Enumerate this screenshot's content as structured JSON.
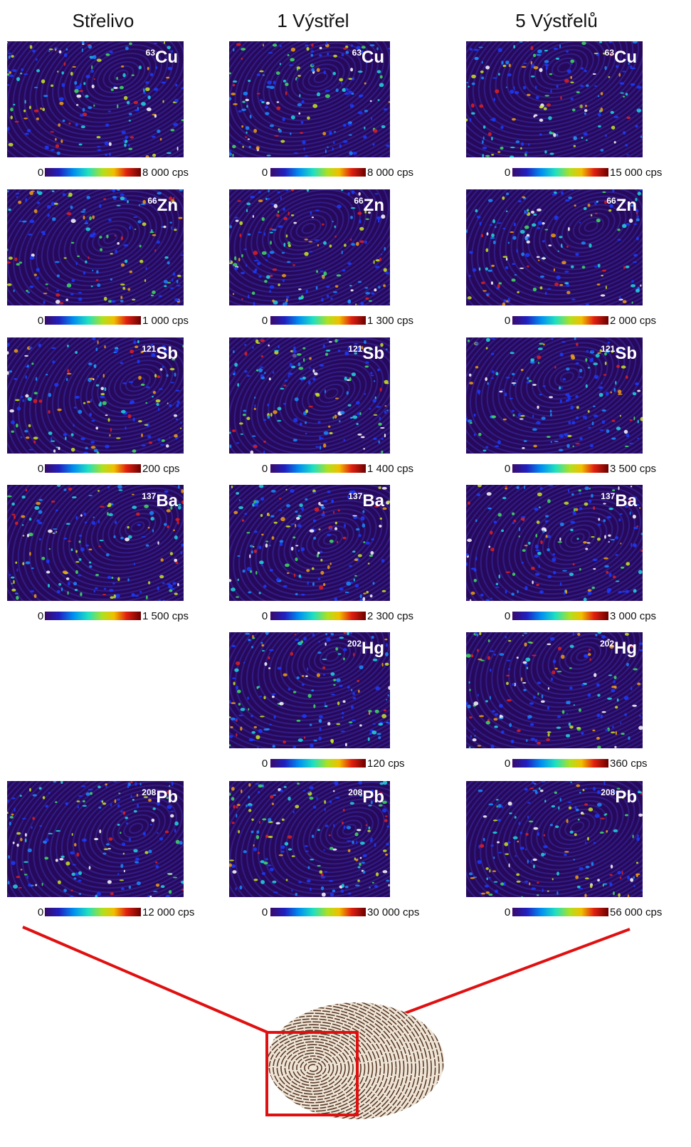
{
  "columns": [
    {
      "title": "Střelivo",
      "panels": [
        {
          "mass": "63",
          "element": "Cu",
          "scale_min": "0",
          "scale_max": "8 000 cps"
        },
        {
          "mass": "66",
          "element": "Zn",
          "scale_min": "0",
          "scale_max": "1 000 cps"
        },
        {
          "mass": "121",
          "element": "Sb",
          "scale_min": "0",
          "scale_max": "200 cps"
        },
        {
          "mass": "137",
          "element": "Ba",
          "scale_min": "0",
          "scale_max": "1 500 cps"
        },
        null,
        {
          "mass": "208",
          "element": "Pb",
          "scale_min": "0",
          "scale_max": "12 000 cps"
        }
      ]
    },
    {
      "title": "1 Výstřel",
      "panels": [
        {
          "mass": "63",
          "element": "Cu",
          "scale_min": "0",
          "scale_max": "8 000 cps"
        },
        {
          "mass": "66",
          "element": "Zn",
          "scale_min": "0",
          "scale_max": "1 300 cps"
        },
        {
          "mass": "121",
          "element": "Sb",
          "scale_min": "0",
          "scale_max": "1 400 cps"
        },
        {
          "mass": "137",
          "element": "Ba",
          "scale_min": "0",
          "scale_max": "2 300 cps"
        },
        {
          "mass": "202",
          "element": "Hg",
          "scale_min": "0",
          "scale_max": "120 cps"
        },
        {
          "mass": "208",
          "element": "Pb",
          "scale_min": "0",
          "scale_max": "30 000 cps"
        }
      ]
    },
    {
      "title": "5 Výstřelů",
      "panels": [
        {
          "mass": "63",
          "element": "Cu",
          "scale_min": "0",
          "scale_max": "15 000 cps"
        },
        {
          "mass": "66",
          "element": "Zn",
          "scale_min": "0",
          "scale_max": "2 000 cps"
        },
        {
          "mass": "121",
          "element": "Sb",
          "scale_min": "0",
          "scale_max": "3 500 cps"
        },
        {
          "mass": "137",
          "element": "Ba",
          "scale_min": "0",
          "scale_max": "3 000 cps"
        },
        {
          "mass": "202",
          "element": "Hg",
          "scale_min": "0",
          "scale_max": "360 cps"
        },
        {
          "mass": "208",
          "element": "Pb",
          "scale_min": "0",
          "scale_max": "56 000 cps"
        }
      ]
    }
  ]
}
